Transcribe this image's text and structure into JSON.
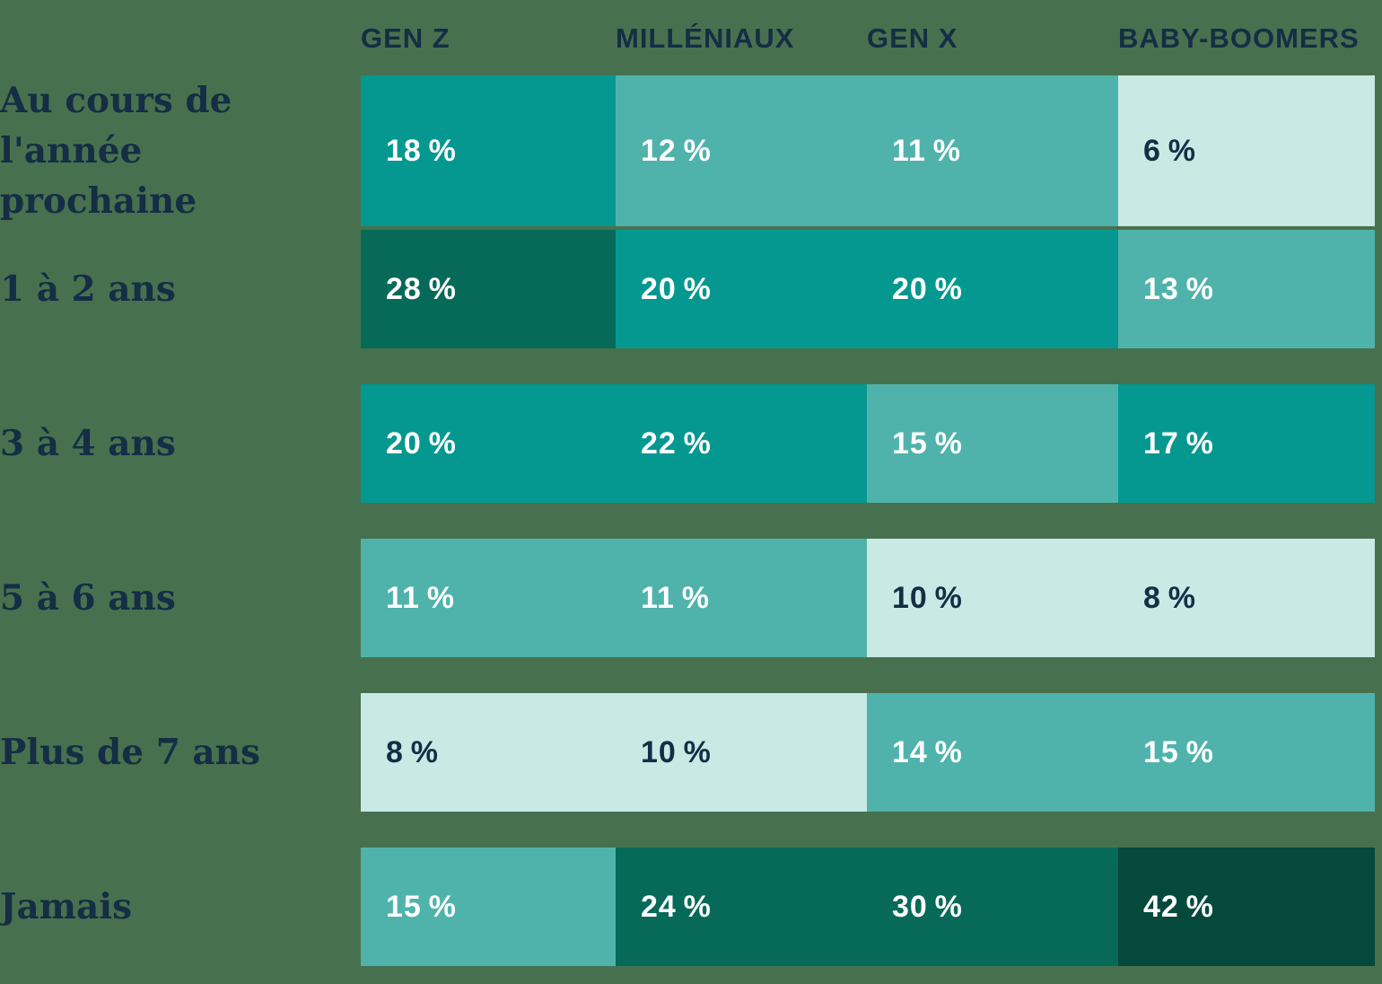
{
  "chart_data": {
    "type": "heatmap",
    "title": "",
    "unit": "%",
    "value_suffix": " %",
    "columns": [
      "GEN Z",
      "MILLÉNIAUX",
      "GEN X",
      "BABY-BOOMERS"
    ],
    "rows": [
      "Au cours de l'année prochaine",
      "1 à 2 ans",
      "3 à 4 ans",
      "5 à 6 ans",
      "Plus de 7 ans",
      "Jamais"
    ],
    "values": [
      [
        18,
        12,
        11,
        6
      ],
      [
        28,
        20,
        20,
        13
      ],
      [
        20,
        22,
        15,
        17
      ],
      [
        11,
        11,
        10,
        8
      ],
      [
        8,
        10,
        14,
        15
      ],
      [
        15,
        24,
        30,
        42
      ]
    ],
    "layout_hints": {
      "legend": "none",
      "grid": "off",
      "value_position": "left-inside-cell",
      "shading_rule": "darker fill = higher percentage"
    }
  },
  "style": {
    "background": "#47714E",
    "header_color": "#132E45",
    "row_label_color": "#132E45",
    "color_scale": [
      {
        "min": 40,
        "fill": "#05493D",
        "text": "#FFFFFF"
      },
      {
        "min": 24,
        "fill": "#076A59",
        "text": "#FFFFFF"
      },
      {
        "min": 17,
        "fill": "#049890",
        "text": "#FFFFFF"
      },
      {
        "min": 11,
        "fill": "#4FB3AC",
        "text": "#FFFFFF"
      },
      {
        "min": 0,
        "fill": "#C9E9E5",
        "text": "#132E45"
      }
    ]
  }
}
